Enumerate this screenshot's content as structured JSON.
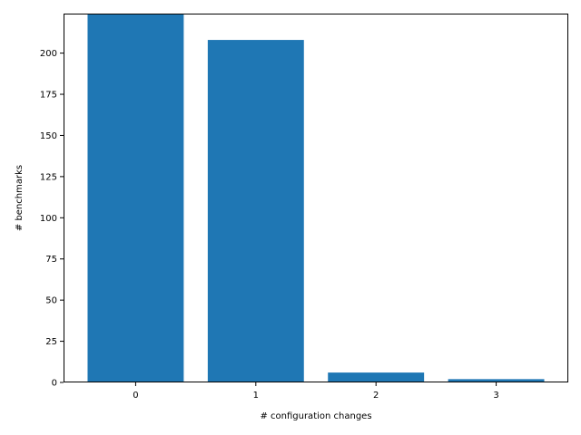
{
  "chart_data": {
    "type": "bar",
    "categories": [
      "0",
      "1",
      "2",
      "3"
    ],
    "values": [
      225,
      208,
      6,
      2
    ],
    "title": "",
    "xlabel": "# configuration changes",
    "ylabel": "# benchmarks",
    "ylim": [
      0,
      224
    ],
    "yticks": [
      0,
      25,
      50,
      75,
      100,
      125,
      150,
      175,
      200
    ],
    "grid": false,
    "bar_color": "#1f77b4"
  }
}
